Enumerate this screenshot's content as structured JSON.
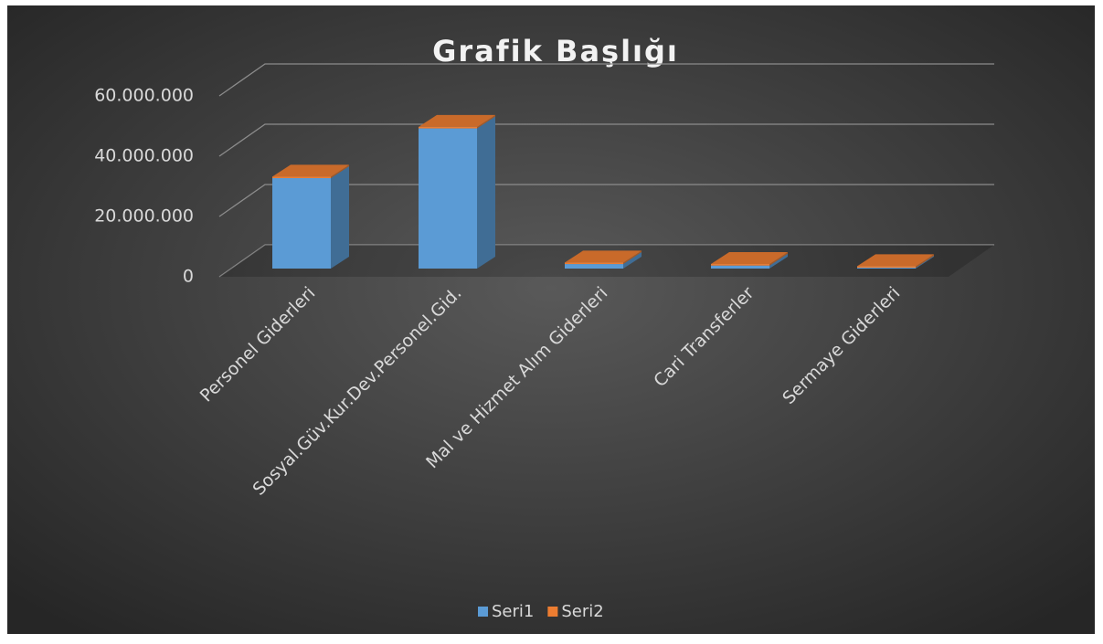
{
  "chart_data": {
    "type": "bar3d_stacked",
    "title": "Grafik Başlığı",
    "categories": [
      "Personel Giderleri",
      "Sosyal.Güv.Kur.Dev.Personel.Gid.",
      "Mal ve Hizmet Alım Giderleri",
      "Cari Transferler",
      "Sermaye Giderleri"
    ],
    "series": [
      {
        "name": "Seri1",
        "color": "#5b9bd5",
        "values": [
          30000000,
          46500000,
          1500000,
          1000000,
          300000
        ]
      },
      {
        "name": "Seri2",
        "color": "#ed7d31",
        "values": [
          500000,
          500000,
          500000,
          500000,
          500000
        ]
      }
    ],
    "ylim": [
      0,
      60000000
    ],
    "yticks": [
      0,
      {
        "value": 20000000,
        "label": "20.000.000"
      },
      {
        "value": 40000000,
        "label": "40.000.000"
      },
      {
        "value": 60000000,
        "label": "60.000.000"
      }
    ],
    "grid": true,
    "legend": "bottom"
  }
}
